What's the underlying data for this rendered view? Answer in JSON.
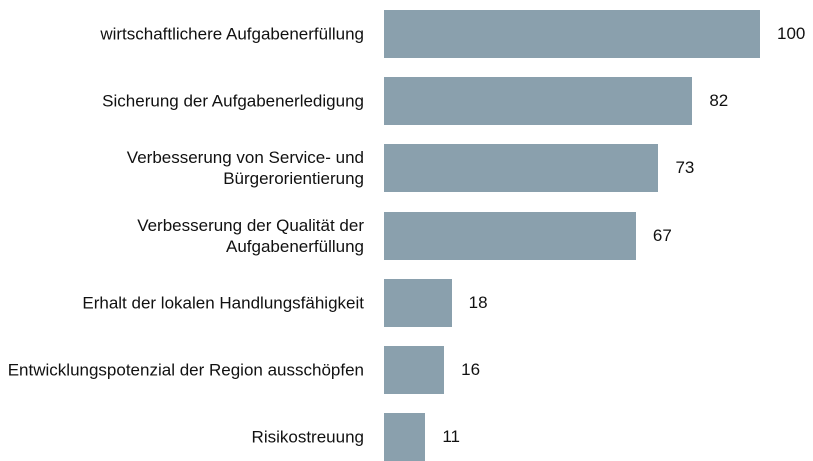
{
  "chart_data": {
    "type": "bar",
    "orientation": "horizontal",
    "color": "#8aa0ad",
    "categories": [
      "wirtschaftlichere Aufgabenerfüllung",
      "Sicherung der Aufgabenerledigung",
      "Verbesserung von Service- und Bürgerorientierung",
      "Verbesserung der Qualität der Aufgabenerfüllung",
      "Erhalt der lokalen Handlungsfähigkeit",
      "Entwicklungspotenzial der Region ausschöpfen",
      "Risikostreuung"
    ],
    "values": [
      100,
      82,
      73,
      67,
      18,
      16,
      11
    ]
  }
}
